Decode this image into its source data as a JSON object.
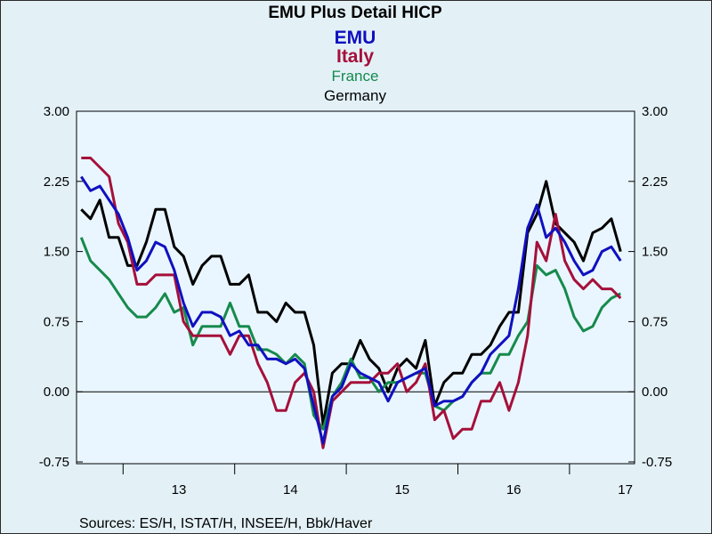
{
  "chart_data": {
    "type": "line",
    "title": "EMU Plus Detail HICP",
    "source": "Sources:  ES/H, ISTAT/H, INSEE/H, Bbk/Haver",
    "y_ticks": [
      "3.00",
      "2.25",
      "1.50",
      "0.75",
      "0.00",
      "-0.75"
    ],
    "y_tick_values": [
      3.0,
      2.25,
      1.5,
      0.75,
      0.0,
      -0.75
    ],
    "x_ticks": [
      "13",
      "14",
      "15",
      "16",
      "17"
    ],
    "x_tick_positions": [
      13.5,
      14.5,
      15.5,
      16.5,
      17.5
    ],
    "ylim": [
      -0.75,
      3.0
    ],
    "xlim": [
      2012.583,
      2017.583
    ],
    "right_axis": true,
    "zero_line": true,
    "grid": false,
    "legend_placement": "top-center",
    "x_start": 2012.625,
    "x_step": 0.08333,
    "series": [
      {
        "name": "EMU",
        "color": "#1010c0",
        "values": [
          2.3,
          2.15,
          2.2,
          2.05,
          1.9,
          1.65,
          1.3,
          1.4,
          1.6,
          1.55,
          1.3,
          0.95,
          0.7,
          0.85,
          0.85,
          0.8,
          0.6,
          0.65,
          0.5,
          0.5,
          0.35,
          0.35,
          0.3,
          0.35,
          0.25,
          -0.15,
          -0.55,
          -0.05,
          0.05,
          0.3,
          0.2,
          0.15,
          0.1,
          -0.1,
          0.1,
          0.15,
          0.2,
          0.25,
          -0.15,
          -0.1,
          -0.1,
          -0.05,
          0.1,
          0.2,
          0.4,
          0.5,
          0.6,
          1.1,
          1.75,
          2.0,
          1.65,
          1.75,
          1.6,
          1.4,
          1.25,
          1.3,
          1.5,
          1.55,
          1.4
        ]
      },
      {
        "name": "Italy",
        "color": "#a5103a",
        "values": [
          2.5,
          2.5,
          2.4,
          2.3,
          1.8,
          1.6,
          1.15,
          1.15,
          1.25,
          1.25,
          1.25,
          0.75,
          0.6,
          0.6,
          0.6,
          0.6,
          0.4,
          0.6,
          0.6,
          0.3,
          0.1,
          -0.2,
          -0.2,
          0.1,
          0.2,
          0.0,
          -0.6,
          -0.1,
          0.0,
          0.1,
          0.1,
          0.1,
          0.2,
          0.2,
          0.3,
          0.0,
          0.1,
          0.3,
          -0.3,
          -0.2,
          -0.5,
          -0.4,
          -0.4,
          -0.1,
          -0.1,
          0.1,
          -0.2,
          0.1,
          0.6,
          1.6,
          1.4,
          1.9,
          1.4,
          1.2,
          1.1,
          1.2,
          1.1,
          1.1,
          1.0
        ]
      },
      {
        "name": "France",
        "color": "#168a4c",
        "values": [
          1.65,
          1.4,
          1.3,
          1.2,
          1.05,
          0.9,
          0.8,
          0.8,
          0.9,
          1.05,
          0.85,
          0.9,
          0.5,
          0.7,
          0.7,
          0.7,
          0.95,
          0.7,
          0.7,
          0.45,
          0.45,
          0.4,
          0.3,
          0.4,
          0.3,
          -0.25,
          -0.4,
          -0.05,
          0.1,
          0.35,
          0.15,
          0.15,
          0.0,
          0.1,
          0.1,
          0.15,
          0.2,
          0.2,
          -0.15,
          -0.2,
          -0.1,
          -0.05,
          0.1,
          0.2,
          0.2,
          0.4,
          0.4,
          0.6,
          0.75,
          1.35,
          1.25,
          1.3,
          1.1,
          0.8,
          0.65,
          0.7,
          0.9,
          1.0,
          1.05
        ]
      },
      {
        "name": "Germany",
        "color": "#000000",
        "values": [
          1.95,
          1.85,
          2.05,
          1.65,
          1.65,
          1.35,
          1.35,
          1.6,
          1.95,
          1.95,
          1.55,
          1.45,
          1.15,
          1.35,
          1.45,
          1.45,
          1.15,
          1.15,
          1.25,
          0.85,
          0.85,
          0.75,
          0.95,
          0.85,
          0.85,
          0.5,
          -0.35,
          0.2,
          0.3,
          0.3,
          0.55,
          0.35,
          0.25,
          0.0,
          0.25,
          0.35,
          0.25,
          0.55,
          -0.15,
          0.1,
          0.2,
          0.2,
          0.4,
          0.4,
          0.5,
          0.7,
          0.85,
          0.85,
          1.7,
          1.9,
          2.25,
          1.8,
          1.7,
          1.6,
          1.4,
          1.7,
          1.75,
          1.85,
          1.5
        ]
      }
    ]
  }
}
